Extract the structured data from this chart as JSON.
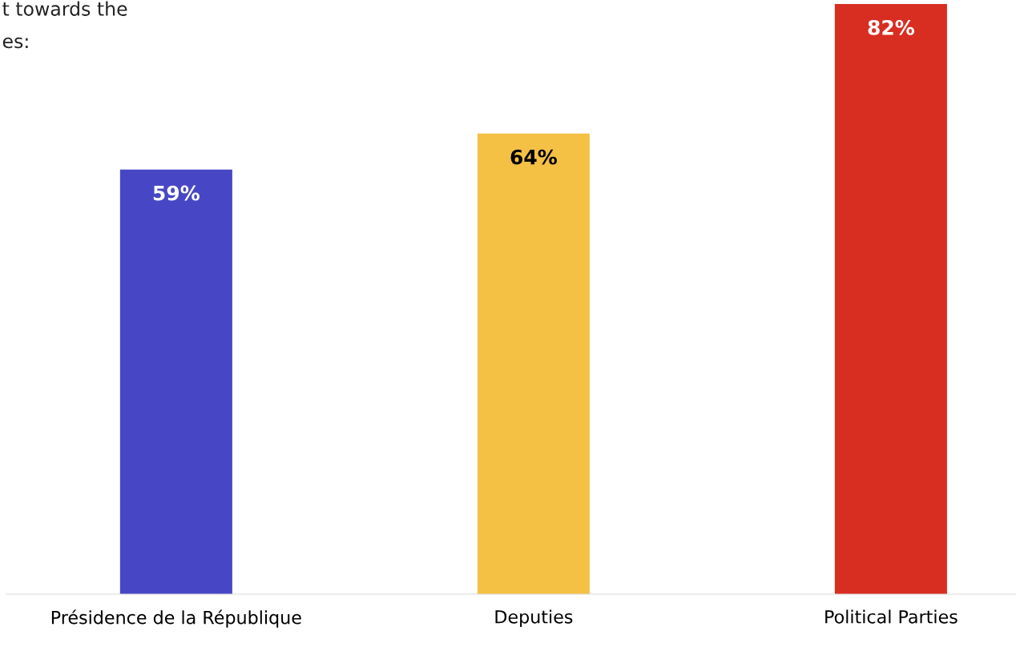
{
  "chart_data": {
    "type": "bar",
    "annotations": [
      "t towards the",
      "es:"
    ],
    "categories": [
      "Présidence de la République",
      "Deputies",
      "Political Parties"
    ],
    "values": [
      59,
      64,
      82
    ],
    "colors": [
      "#4747c6",
      "#f4c145",
      "#d82e22"
    ],
    "value_labels": [
      "59%",
      "64%",
      "82%"
    ],
    "grid": false,
    "legend": false
  }
}
